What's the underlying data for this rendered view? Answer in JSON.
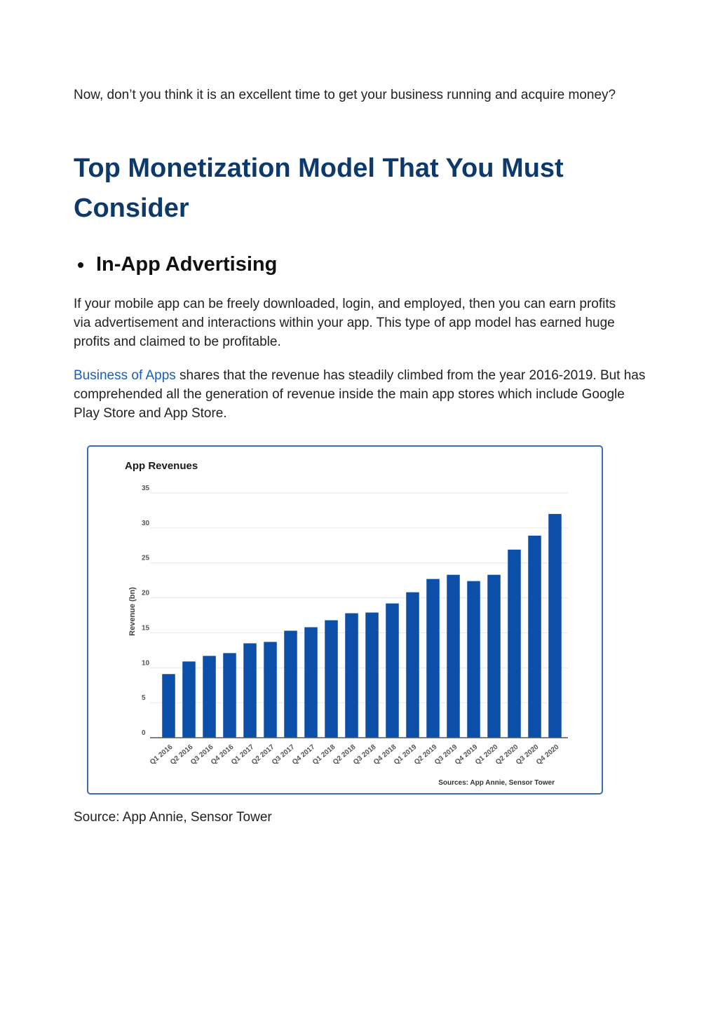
{
  "intro": {
    "text": "Now, don’t you think it is an excellent time to get your business running and acquire money?"
  },
  "heading": {
    "text": "Top Monetization Model That You Must Consider"
  },
  "subheading": {
    "text": "In-App Advertising"
  },
  "paragraph1": {
    "text": "If your mobile app can be freely downloaded, login, and employed, then you can earn profits via advertisement and interactions within your app. This type of app model has earned huge profits and claimed to be profitable."
  },
  "paragraph2": {
    "link_text": "Business of Apps",
    "text": " shares that the revenue has steadily climbed from the year 2016-2019. But has comprehended all the generation of revenue inside the main app stores which include Google Play Store and App Store."
  },
  "caption": {
    "text": "Source: App Annie, Sensor Tower"
  },
  "colors": {
    "heading": "#0e3a6b",
    "link": "#1a5fb4",
    "bar": "#0b4fa8",
    "frame": "#3b6fb3"
  },
  "chart_data": {
    "type": "bar",
    "title": "App Revenues",
    "ylabel": "Revenue (bn)",
    "xlabel": "",
    "source": "Sources: App Annie, Sensor Tower",
    "ylim": [
      0,
      35
    ],
    "yticks": [
      0,
      5,
      10,
      15,
      20,
      25,
      30,
      35
    ],
    "grid": true,
    "categories": [
      "Q1 2016",
      "Q2 2016",
      "Q3 2016",
      "Q4 2016",
      "Q1 2017",
      "Q2 2017",
      "Q3 2017",
      "Q4 2017",
      "Q1 2018",
      "Q2 2018",
      "Q3 2018",
      "Q4 2018",
      "Q1 2019",
      "Q2 2019",
      "Q3 2019",
      "Q4 2019",
      "Q1 2020",
      "Q2 2020",
      "Q3 2020",
      "Q4 2020"
    ],
    "values": [
      9.1,
      10.9,
      11.7,
      12.1,
      13.5,
      13.7,
      15.3,
      15.8,
      16.8,
      17.8,
      17.9,
      19.2,
      20.8,
      22.7,
      23.3,
      22.4,
      23.3,
      26.9,
      28.9,
      32.0
    ]
  }
}
